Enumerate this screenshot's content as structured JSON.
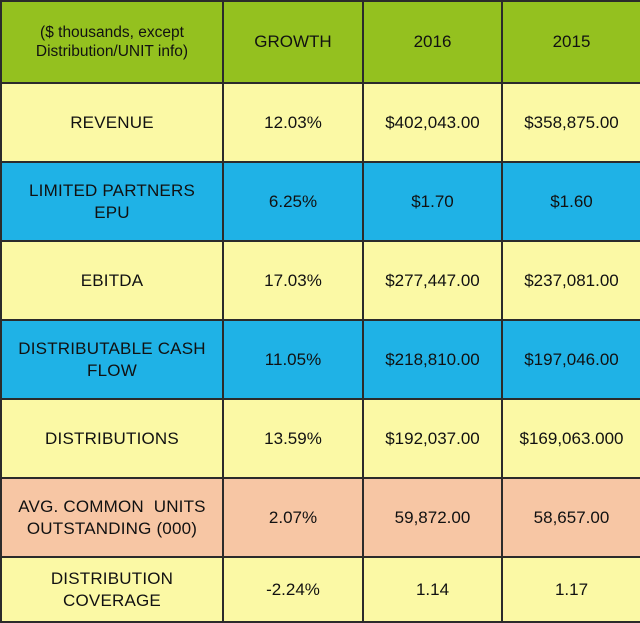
{
  "header": {
    "label_line1": "($ thousands, except",
    "label_line2": "Distribution/UNIT info)",
    "growth": "GROWTH",
    "year_a": "2016",
    "year_b": "2015"
  },
  "colors": {
    "header_bg": "#94c11f",
    "yellow_row": "#fbf9a5",
    "blue_row": "#1fb2e6",
    "peach_row": "#f7c6a4",
    "border": "#2b2b2b"
  },
  "rows": [
    {
      "label_line1": "REVENUE",
      "label_line2": "",
      "growth": "12.03%",
      "y2016": "$402,043.00",
      "y2015": "$358,875.00",
      "color": "yellow"
    },
    {
      "label_line1": "LIMITED PARTNERS",
      "label_line2": "EPU",
      "growth": "6.25%",
      "y2016": "$1.70",
      "y2015": "$1.60",
      "color": "blue"
    },
    {
      "label_line1": "EBITDA",
      "label_line2": "",
      "growth": "17.03%",
      "y2016": "$277,447.00",
      "y2015": "$237,081.00",
      "color": "yellow"
    },
    {
      "label_line1": "DISTRIBUTABLE CASH",
      "label_line2": "FLOW",
      "growth": "11.05%",
      "y2016": "$218,810.00",
      "y2015": "$197,046.00",
      "color": "blue"
    },
    {
      "label_line1": "DISTRIBUTIONS",
      "label_line2": "",
      "growth": "13.59%",
      "y2016": "$192,037.00",
      "y2015": "$169,063.000",
      "color": "yellow"
    },
    {
      "label_line1": "AVG. COMMON  UNITS",
      "label_line2": "OUTSTANDING (000)",
      "growth": "2.07%",
      "y2016": "59,872.00",
      "y2015": "58,657.00",
      "color": "peach"
    },
    {
      "label_line1": "DISTRIBUTION",
      "label_line2": "COVERAGE",
      "growth": "-2.24%",
      "y2016": "1.14",
      "y2015": "1.17",
      "color": "yellow"
    }
  ]
}
